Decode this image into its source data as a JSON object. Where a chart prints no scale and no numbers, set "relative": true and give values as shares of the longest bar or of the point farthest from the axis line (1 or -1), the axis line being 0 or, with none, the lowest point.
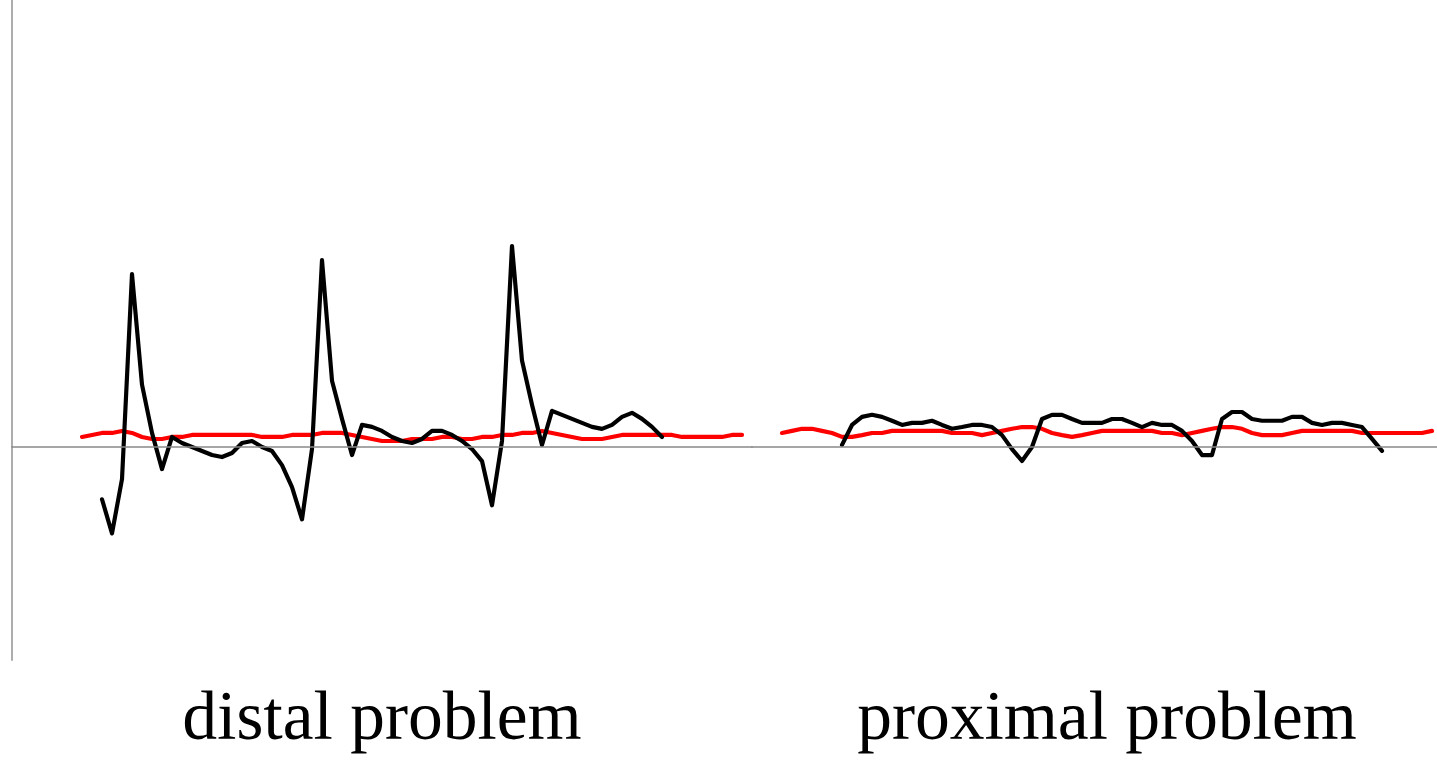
{
  "chart_data": [
    {
      "type": "line",
      "relative": true,
      "xlabel": "distal problem",
      "categories": [
        null,
        null,
        null,
        null,
        null,
        null,
        null,
        null,
        null,
        null,
        null,
        null,
        null,
        null,
        null,
        null,
        null,
        null,
        null,
        null,
        null,
        null,
        null,
        null,
        null,
        null,
        null,
        null,
        null,
        null,
        null,
        null,
        null,
        null,
        null,
        null,
        null,
        null,
        null,
        null,
        null,
        null,
        null,
        null,
        null,
        null,
        null,
        null,
        null,
        null,
        null,
        null,
        null,
        null,
        null,
        null,
        null,
        null,
        null,
        null,
        null,
        null,
        null,
        null,
        null,
        null,
        null
      ],
      "series": [
        {
          "color": "#ff0000",
          "values": [
            0.05,
            0.06,
            0.07,
            0.07,
            0.08,
            0.07,
            0.05,
            0.04,
            0.04,
            0.05,
            0.05,
            0.06,
            0.06,
            0.06,
            0.06,
            0.06,
            0.06,
            0.06,
            0.05,
            0.05,
            0.05,
            0.06,
            0.06,
            0.06,
            0.07,
            0.07,
            0.07,
            0.06,
            0.05,
            0.04,
            0.03,
            0.03,
            0.03,
            0.04,
            0.04,
            0.04,
            0.05,
            0.05,
            0.04,
            0.04,
            0.05,
            0.05,
            0.06,
            0.06,
            0.07,
            0.07,
            0.08,
            0.07,
            0.06,
            0.05,
            0.04,
            0.04,
            0.04,
            0.05,
            0.06,
            0.06,
            0.06,
            0.06,
            0.06,
            0.06,
            0.05,
            0.05,
            0.05,
            0.05,
            0.05,
            0.06,
            0.06
          ]
        },
        {
          "color": "#000000",
          "values": [
            null,
            null,
            -0.26,
            -0.43,
            -0.16,
            0.86,
            0.31,
            0.07,
            -0.11,
            0.05,
            0.02,
            0.0,
            -0.02,
            -0.04,
            -0.05,
            -0.03,
            0.02,
            0.03,
            0.0,
            -0.02,
            -0.09,
            -0.2,
            -0.36,
            -0.01,
            0.93,
            0.33,
            0.14,
            -0.04,
            0.11,
            0.1,
            0.08,
            0.05,
            0.03,
            0.02,
            0.04,
            0.08,
            0.08,
            0.06,
            0.03,
            -0.01,
            -0.07,
            -0.29,
            0.03,
            1.0,
            0.43,
            0.21,
            0.01,
            0.18,
            0.16,
            0.14,
            0.12,
            0.1,
            0.09,
            0.11,
            0.15,
            0.17,
            0.14,
            0.1,
            0.05,
            null,
            null,
            null,
            null,
            null,
            null,
            null,
            null
          ]
        }
      ]
    },
    {
      "type": "line",
      "relative": true,
      "xlabel": "proximal problem",
      "categories": [
        null,
        null,
        null,
        null,
        null,
        null,
        null,
        null,
        null,
        null,
        null,
        null,
        null,
        null,
        null,
        null,
        null,
        null,
        null,
        null,
        null,
        null,
        null,
        null,
        null,
        null,
        null,
        null,
        null,
        null,
        null,
        null,
        null,
        null,
        null,
        null,
        null,
        null,
        null,
        null,
        null,
        null,
        null,
        null,
        null,
        null,
        null,
        null,
        null,
        null,
        null,
        null,
        null,
        null,
        null,
        null,
        null,
        null,
        null,
        null,
        null,
        null,
        null,
        null,
        null,
        null
      ],
      "series": [
        {
          "color": "#ff0000",
          "values": [
            0.4,
            0.46,
            0.52,
            0.52,
            0.46,
            0.4,
            0.29,
            0.29,
            0.34,
            0.4,
            0.4,
            0.46,
            0.46,
            0.46,
            0.46,
            0.46,
            0.46,
            0.4,
            0.4,
            0.4,
            0.34,
            0.4,
            0.46,
            0.52,
            0.57,
            0.57,
            0.52,
            0.4,
            0.34,
            0.29,
            0.34,
            0.4,
            0.46,
            0.46,
            0.46,
            0.46,
            0.46,
            0.46,
            0.4,
            0.4,
            0.34,
            0.4,
            0.46,
            0.52,
            0.57,
            0.57,
            0.52,
            0.4,
            0.34,
            0.34,
            0.34,
            0.4,
            0.46,
            0.46,
            0.46,
            0.46,
            0.46,
            0.46,
            0.4,
            0.4,
            0.4,
            0.4,
            0.4,
            0.4,
            0.4,
            0.46
          ]
        },
        {
          "color": "#000000",
          "values": [
            null,
            null,
            null,
            null,
            null,
            null,
            0.06,
            0.63,
            0.86,
            0.92,
            0.86,
            0.75,
            0.63,
            0.69,
            0.69,
            0.75,
            0.63,
            0.52,
            0.57,
            0.63,
            0.63,
            0.57,
            0.34,
            -0.06,
            -0.4,
            0.0,
            0.8,
            0.92,
            0.92,
            0.8,
            0.69,
            0.69,
            0.69,
            0.8,
            0.8,
            0.69,
            0.57,
            0.69,
            0.63,
            0.63,
            0.46,
            0.17,
            -0.23,
            -0.23,
            0.8,
            1.0,
            1.0,
            0.8,
            0.75,
            0.75,
            0.75,
            0.86,
            0.86,
            0.69,
            0.63,
            0.69,
            0.69,
            0.63,
            0.57,
            0.23,
            -0.11,
            null,
            null,
            null,
            null,
            null
          ]
        }
      ]
    }
  ]
}
